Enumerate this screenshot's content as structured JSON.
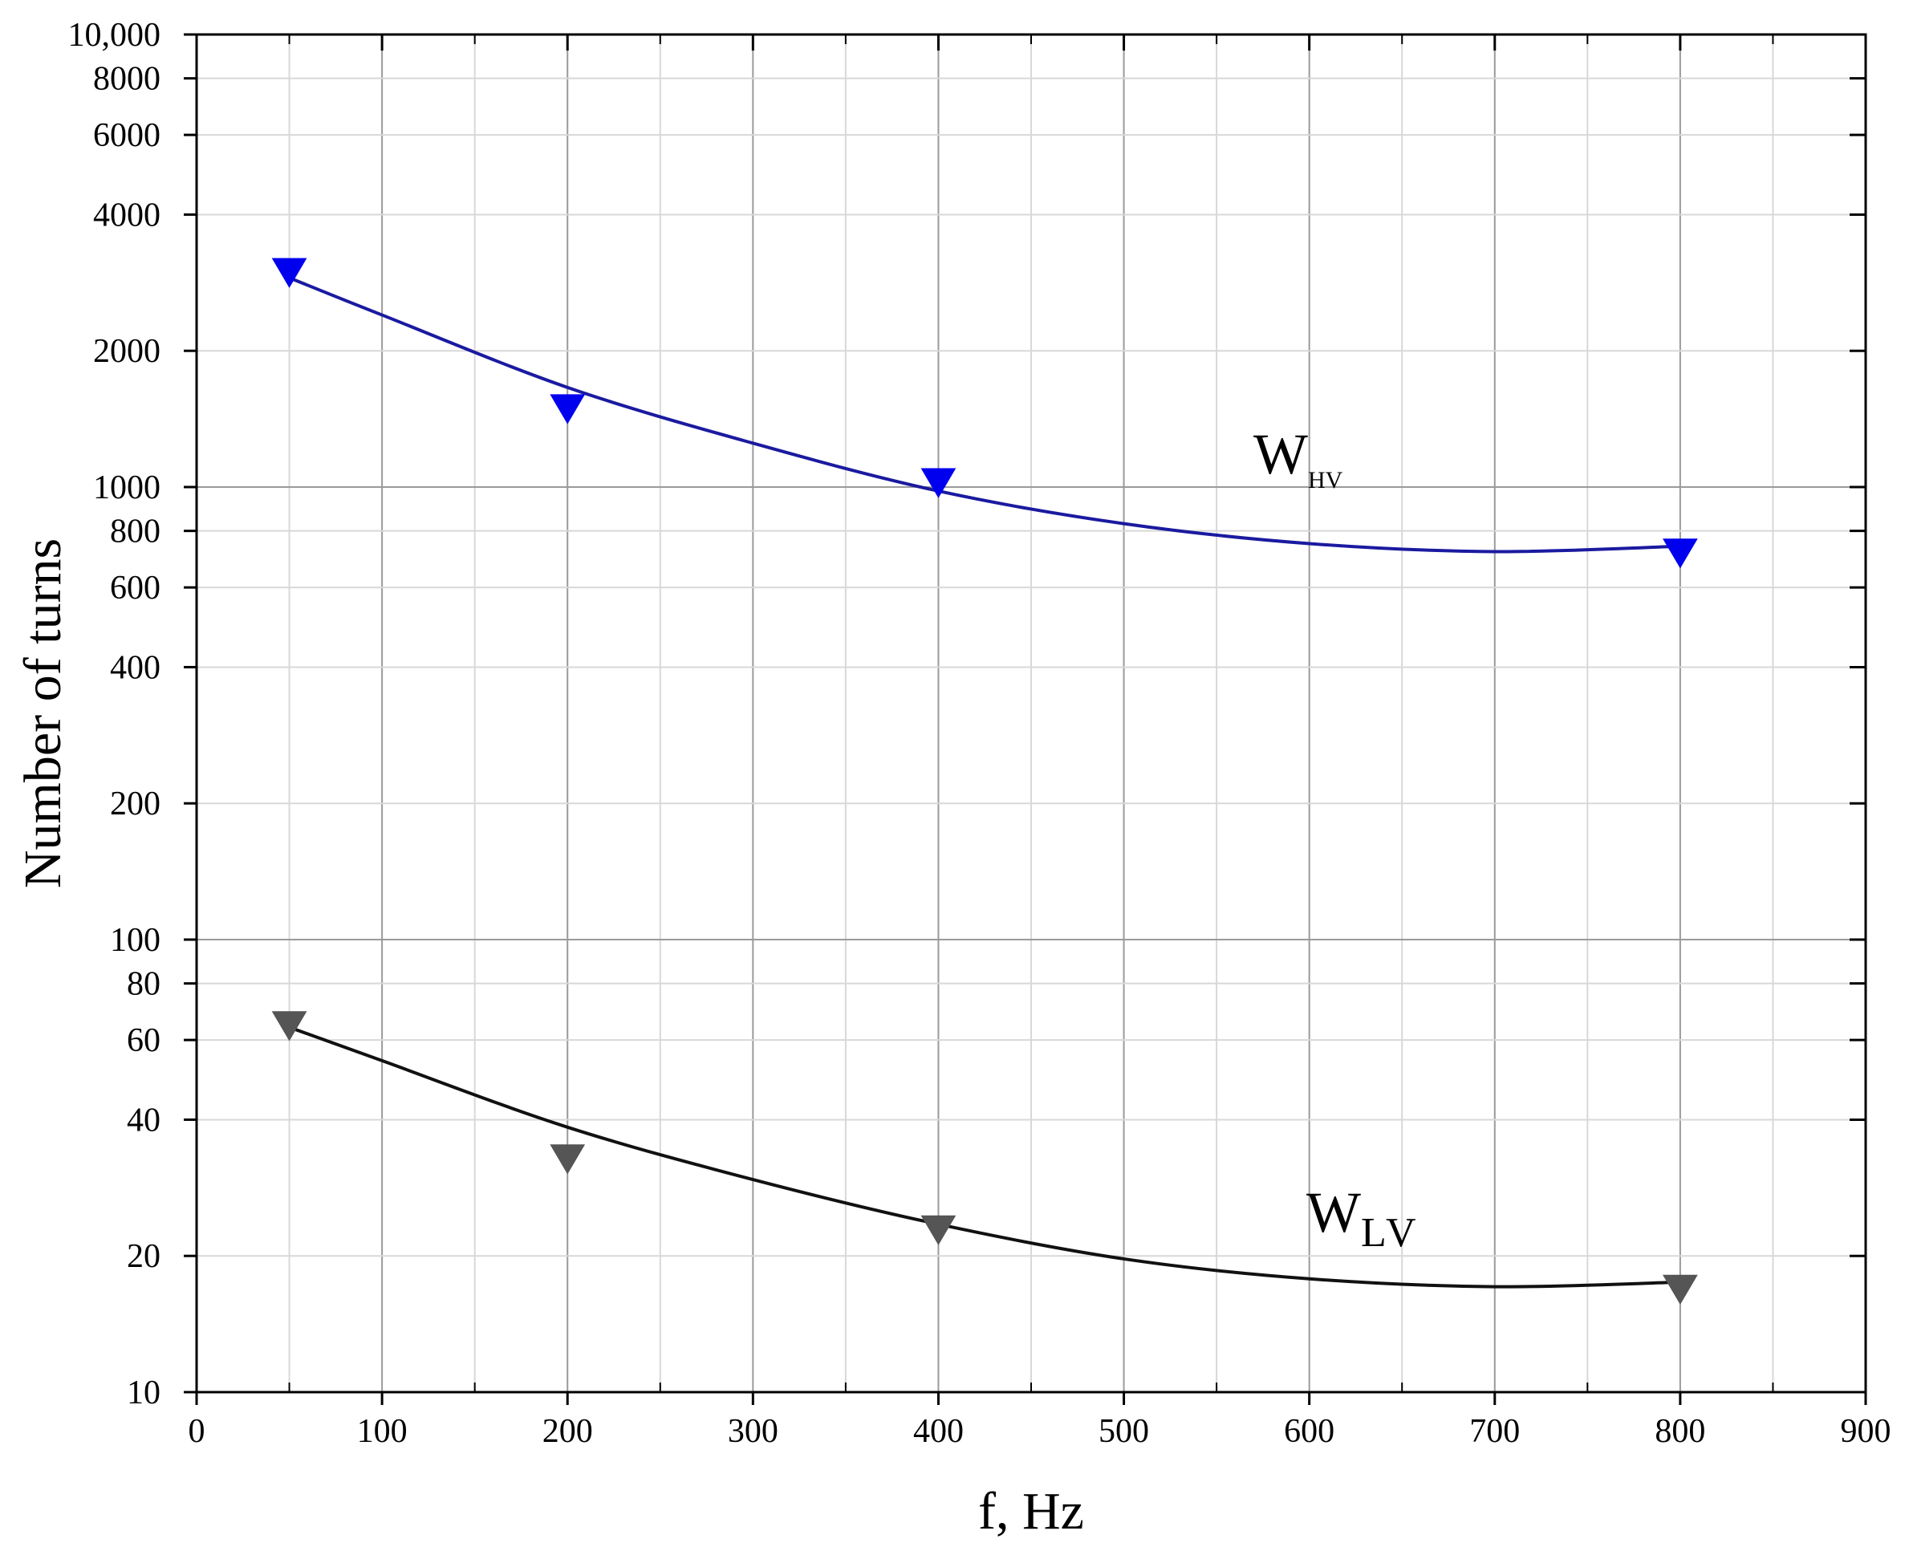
{
  "chart_data": {
    "type": "scatter",
    "xlabel": "f, Hz",
    "ylabel": "Number of turns",
    "xlim": [
      0,
      900
    ],
    "ylim": [
      10,
      10000
    ],
    "yscale": "log",
    "grid": true,
    "x_ticks": [
      0,
      100,
      200,
      300,
      400,
      500,
      600,
      700,
      800,
      900
    ],
    "x_tick_labels": [
      "0",
      "100",
      "200",
      "300",
      "400",
      "500",
      "600",
      "700",
      "800",
      "900"
    ],
    "y_ticks": [
      10,
      20,
      40,
      60,
      80,
      100,
      200,
      400,
      600,
      800,
      1000,
      2000,
      4000,
      6000,
      8000,
      10000
    ],
    "y_tick_labels": [
      "10",
      "20",
      "40",
      "60",
      "80",
      "100",
      "200",
      "400",
      "600",
      "800",
      "1000",
      "2000",
      "4000",
      "6000",
      "8000",
      "10,000"
    ],
    "series": [
      {
        "name": "HV",
        "label_main": "W",
        "label_sub": "HV",
        "color": "#0000ee",
        "line_color": "#1a1aa0",
        "points": [
          {
            "x": 50,
            "y": 3000
          },
          {
            "x": 200,
            "y": 1500
          },
          {
            "x": 400,
            "y": 1030
          },
          {
            "x": 800,
            "y": 720
          }
        ],
        "fit": [
          {
            "x": 50,
            "y": 2900
          },
          {
            "x": 100,
            "y": 2400
          },
          {
            "x": 200,
            "y": 1660
          },
          {
            "x": 300,
            "y": 1250
          },
          {
            "x": 400,
            "y": 980
          },
          {
            "x": 500,
            "y": 830
          },
          {
            "x": 600,
            "y": 750
          },
          {
            "x": 700,
            "y": 720
          },
          {
            "x": 800,
            "y": 740
          }
        ]
      },
      {
        "name": "LV",
        "label_main": "W",
        "label_sub": "LV",
        "color": "#555555",
        "line_color": "#111111",
        "points": [
          {
            "x": 50,
            "y": 65
          },
          {
            "x": 200,
            "y": 33
          },
          {
            "x": 400,
            "y": 23
          },
          {
            "x": 800,
            "y": 17
          }
        ],
        "fit": [
          {
            "x": 50,
            "y": 64
          },
          {
            "x": 100,
            "y": 54
          },
          {
            "x": 200,
            "y": 38.5
          },
          {
            "x": 300,
            "y": 29.5
          },
          {
            "x": 400,
            "y": 23.5
          },
          {
            "x": 500,
            "y": 19.7
          },
          {
            "x": 600,
            "y": 17.8
          },
          {
            "x": 700,
            "y": 17.1
          },
          {
            "x": 800,
            "y": 17.5
          }
        ]
      }
    ]
  }
}
